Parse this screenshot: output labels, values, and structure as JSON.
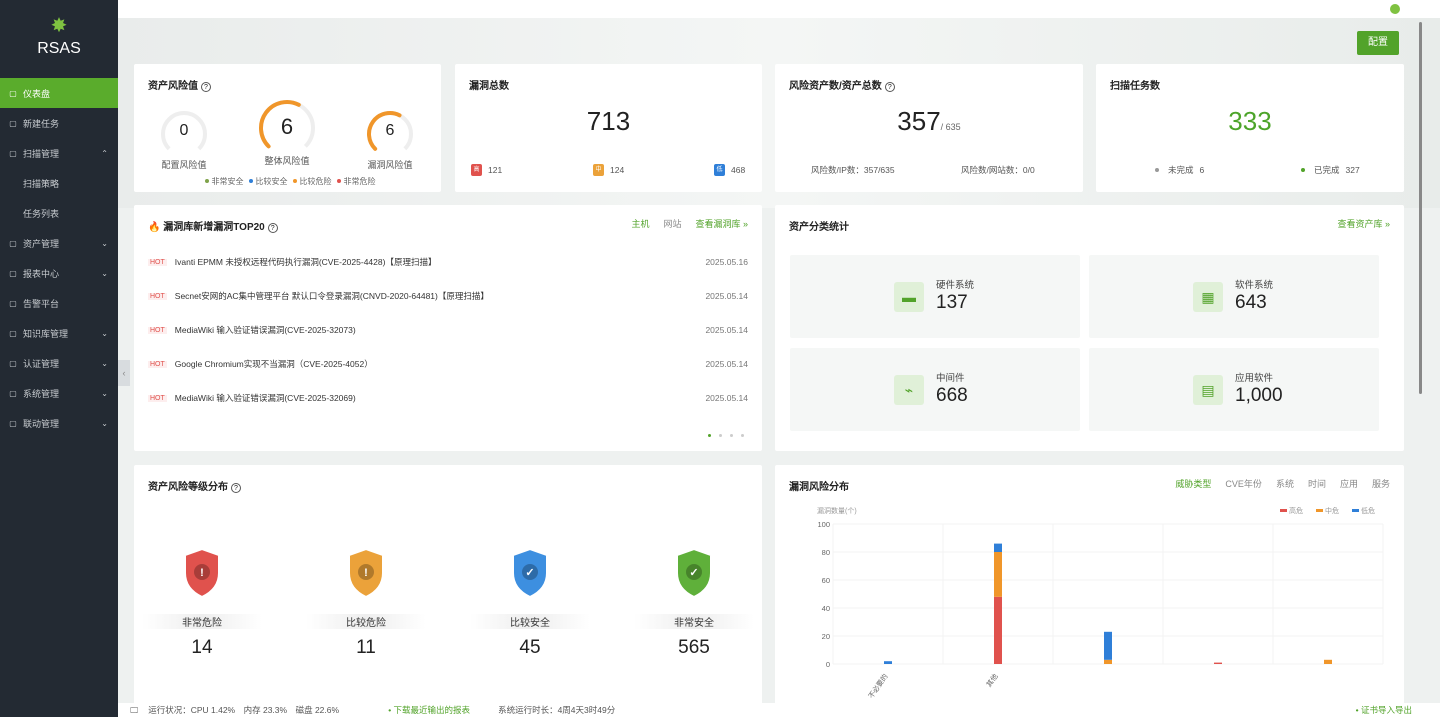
{
  "app": {
    "name": "RSAS"
  },
  "sidebar": {
    "items": [
      {
        "label": "仪表盘",
        "icon": "dashboard-icon",
        "active": true
      },
      {
        "label": "新建任务",
        "icon": "clipboard-icon"
      },
      {
        "label": "扫描管理",
        "icon": "scan-icon",
        "expanded": true
      },
      {
        "label": "扫描策略",
        "sub": true
      },
      {
        "label": "任务列表",
        "sub": true
      },
      {
        "label": "资产管理",
        "icon": "asset-icon"
      },
      {
        "label": "报表中心",
        "icon": "report-icon"
      },
      {
        "label": "告警平台",
        "icon": "alarm-icon"
      },
      {
        "label": "知识库管理",
        "icon": "book-icon"
      },
      {
        "label": "认证管理",
        "icon": "cert-icon"
      },
      {
        "label": "系统管理",
        "icon": "system-icon"
      },
      {
        "label": "联动管理",
        "icon": "link-icon"
      }
    ]
  },
  "toolbar": {
    "config_label": "配置"
  },
  "asset_risk": {
    "title": "资产风险值",
    "gauges": [
      {
        "label": "配置风险值",
        "value": "0",
        "level": 0
      },
      {
        "label": "整体风险值",
        "value": "6",
        "level": 0.6
      },
      {
        "label": "漏洞风险值",
        "value": "6",
        "level": 0.6
      }
    ],
    "legend": [
      {
        "label": "非常安全",
        "color": "#7fa34a"
      },
      {
        "label": "比较安全",
        "color": "#2f7fd8"
      },
      {
        "label": "比较危险",
        "color": "#f0962a"
      },
      {
        "label": "非常危险",
        "color": "#e0524d"
      }
    ]
  },
  "vuln_total": {
    "title": "漏洞总数",
    "value": "713",
    "high": {
      "badge": "高",
      "value": "121"
    },
    "mid": {
      "badge": "中",
      "value": "124"
    },
    "low": {
      "badge": "低",
      "value": "468"
    }
  },
  "risk_assets": {
    "title": "风险资产数/资产总数",
    "value": "357",
    "total": "/ 635",
    "ip": "风险数/IP数：357/635",
    "site": "风险数/网站数：0/0"
  },
  "scan_tasks": {
    "title": "扫描任务数",
    "value": "333",
    "unfinished_label": "未完成",
    "unfinished": "6",
    "finished_label": "已完成",
    "finished": "327"
  },
  "top20": {
    "title": "漏洞库新增漏洞TOP20",
    "tabs": [
      "主机",
      "网站"
    ],
    "view_link": "查看漏洞库 »",
    "hot": "HOT",
    "rows": [
      {
        "title": "Ivanti EPMM 未授权远程代码执行漏洞(CVE-2025-4428)【原理扫描】",
        "date": "2025.05.16"
      },
      {
        "title": "Secnet安网的AC集中管理平台 默认口令登录漏洞(CNVD-2020-64481)【原理扫描】",
        "date": "2025.05.14"
      },
      {
        "title": "MediaWiki 输入验证错误漏洞(CVE-2025-32073)",
        "date": "2025.05.14"
      },
      {
        "title": "Google Chromium实现不当漏洞（CVE-2025-4052）",
        "date": "2025.05.14"
      },
      {
        "title": "MediaWiki 输入验证错误漏洞(CVE-2025-32069)",
        "date": "2025.05.14"
      }
    ]
  },
  "asset_class": {
    "title": "资产分类统计",
    "view_link": "查看资产库 »",
    "items": [
      {
        "label": "硬件系统",
        "value": "137",
        "icon": "hardware-icon"
      },
      {
        "label": "软件系统",
        "value": "643",
        "icon": "software-icon"
      },
      {
        "label": "中间件",
        "value": "668",
        "icon": "middleware-icon"
      },
      {
        "label": "应用软件",
        "value": "1,000",
        "icon": "app-icon"
      }
    ]
  },
  "risk_level": {
    "title": "资产风险等级分布",
    "items": [
      {
        "label": "非常危险",
        "value": "14",
        "color": "#e0524d",
        "glyph": "!"
      },
      {
        "label": "比较危险",
        "value": "11",
        "color": "#eba23a",
        "glyph": "!"
      },
      {
        "label": "比较安全",
        "value": "45",
        "color": "#3d8fe0",
        "glyph": "✓"
      },
      {
        "label": "非常安全",
        "value": "565",
        "color": "#5fb03a",
        "glyph": "✓"
      }
    ]
  },
  "vuln_dist": {
    "title": "漏洞风险分布",
    "tabs": [
      "威胁类型",
      "CVE年份",
      "系统",
      "时间",
      "应用",
      "服务"
    ]
  },
  "chart_data": {
    "type": "bar",
    "stacked": true,
    "ylabel": "漏洞数量(个)",
    "ylim": [
      0,
      100
    ],
    "yticks": [
      0,
      20,
      40,
      60,
      80,
      100
    ],
    "categories": [
      "不必要的",
      "其他",
      "",
      "",
      ""
    ],
    "series": [
      {
        "name": "高危",
        "color": "#e0524d",
        "values": [
          0,
          48,
          0,
          1,
          0
        ]
      },
      {
        "name": "中危",
        "color": "#f0962a",
        "values": [
          0,
          32,
          3,
          0,
          3
        ]
      },
      {
        "name": "低危",
        "color": "#2f7fd8",
        "values": [
          2,
          6,
          20,
          0,
          0
        ]
      }
    ],
    "legend": "top-right",
    "grid": true
  },
  "footer": {
    "status": "运行状况：CPU 1.42%　内存 23.3%　磁盘 22.6%",
    "download": "下载最近输出的报表",
    "uptime": "系统运行时长：4周4天3时49分",
    "cert": "证书导入导出"
  }
}
